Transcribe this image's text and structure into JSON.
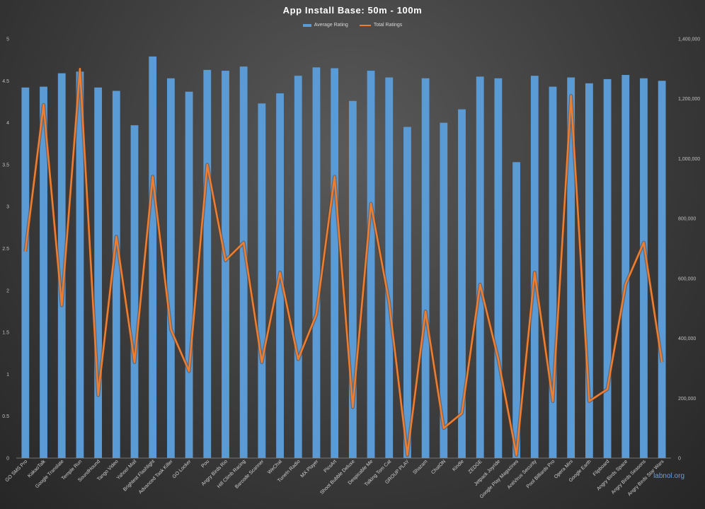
{
  "chart_data": {
    "type": "bar+line",
    "title": "App Install Base: 50m - 100m",
    "categories": [
      "GO SMS Pro",
      "KakaoTalk",
      "Google Translate",
      "Temple Run",
      "SoundHound",
      "Tango Video",
      "Yahoo! Mail",
      "Brightest Flashlight",
      "Advanced Task Killer",
      "GO Locker",
      "Pou",
      "Angry Birds Rio",
      "Hill Climb Racing",
      "Barcode Scanner",
      "WeChat",
      "TuneIn Radio",
      "MX Player",
      "PicsArt",
      "Shoot Bubble Deluxe",
      "Despicable Me",
      "Talking Tom Cat",
      "GROUP PLAY",
      "Shazam",
      "ChatON",
      "Kindle",
      "ZEDGE",
      "Jetpack Joyride",
      "Google Play Magazines",
      "AntiVirus Security",
      "Pool Billiards Pro",
      "Opera Mini",
      "Google Earth",
      "Flipboard",
      "Angry Birds Space",
      "Angry Birds Seasons",
      "Angry Birds Star Wars"
    ],
    "series": [
      {
        "name": "Average Rating",
        "type": "bar",
        "axis": "left",
        "values": [
          4.42,
          4.43,
          4.59,
          4.61,
          4.42,
          4.38,
          3.97,
          4.79,
          4.53,
          4.37,
          4.63,
          4.62,
          4.67,
          4.23,
          4.35,
          4.56,
          4.66,
          4.65,
          4.26,
          4.62,
          4.54,
          3.95,
          4.53,
          4.0,
          4.16,
          4.55,
          4.53,
          3.53,
          4.56,
          4.43,
          4.54,
          4.47,
          4.52,
          4.57,
          4.53,
          4.5
        ]
      },
      {
        "name": "Total Ratings",
        "type": "line",
        "axis": "right",
        "values": [
          690000,
          1180000,
          510000,
          1300000,
          210000,
          740000,
          320000,
          940000,
          430000,
          290000,
          980000,
          660000,
          720000,
          320000,
          620000,
          330000,
          480000,
          940000,
          170000,
          850000,
          520000,
          10000,
          490000,
          100000,
          150000,
          580000,
          330000,
          10000,
          620000,
          190000,
          1210000,
          190000,
          230000,
          580000,
          720000,
          320000
        ]
      }
    ],
    "y_left": {
      "ylim": [
        0,
        5
      ],
      "ticks": [
        "0",
        "0.5",
        "1",
        "1.5",
        "2",
        "2.5",
        "3",
        "3.5",
        "4",
        "4.5",
        "5"
      ]
    },
    "y_right": {
      "ylim": [
        0,
        1400000
      ],
      "ticks": [
        "0",
        "200,000",
        "400,000",
        "600,000",
        "800,000",
        "1,000,000",
        "1,200,000",
        "1,400,000"
      ]
    },
    "legend_position": "top",
    "grid": false,
    "colors": {
      "bar": "#5b9bd5",
      "line": "#ed7d31"
    }
  },
  "watermark": "labnol.org"
}
